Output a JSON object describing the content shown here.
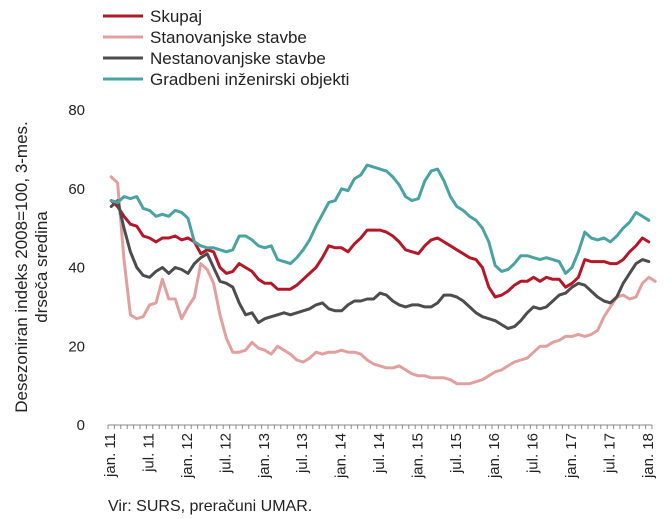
{
  "chart_data": {
    "type": "line",
    "title": "",
    "ylabel_line1": "Desezoniran indeks 2008=100, 3-mes.",
    "ylabel_line2": "drseča sredina",
    "xlabel": "",
    "ylim": [
      0,
      80
    ],
    "yticks": [
      0,
      20,
      40,
      60,
      80
    ],
    "grid": false,
    "legend_position": "top-left",
    "x_start": "2011-01",
    "x_end": "2018-03",
    "x_tick_labels": [
      "jan. 11",
      "jul. 11",
      "jan. 12",
      "jul. 12",
      "jan. 13",
      "jul. 13",
      "jan. 14",
      "jul. 14",
      "jan. 15",
      "jul. 15",
      "jan. 16",
      "jul. 16",
      "jan. 17",
      "jul. 17",
      "jan. 18"
    ],
    "series": [
      {
        "name": "Skupaj",
        "color": "#b3172a",
        "values": [
          57.0,
          55.5,
          53.0,
          51.0,
          50.5,
          48.0,
          47.5,
          46.5,
          47.5,
          47.5,
          48.0,
          47.0,
          47.5,
          46.5,
          43.5,
          44.5,
          44.0,
          40.0,
          38.5,
          39.0,
          41.0,
          40.0,
          39.0,
          37.0,
          36.0,
          36.0,
          34.5,
          34.5,
          34.5,
          35.5,
          37.0,
          38.5,
          40.0,
          42.5,
          45.5,
          45.0,
          45.0,
          44.0,
          46.0,
          47.5,
          49.5,
          49.5,
          49.5,
          49.0,
          48.0,
          46.5,
          44.5,
          44.0,
          43.5,
          45.5,
          47.0,
          47.5,
          46.5,
          45.5,
          44.5,
          43.5,
          42.5,
          42.0,
          40.0,
          35.0,
          32.5,
          33.0,
          34.0,
          35.5,
          36.5,
          36.5,
          37.5,
          36.5,
          37.5,
          37.0,
          37.0,
          35.0,
          36.0,
          37.5,
          42.0,
          41.5,
          41.5,
          41.5,
          41.0,
          41.0,
          42.0,
          44.0,
          45.5,
          47.5,
          46.5
        ]
      },
      {
        "name": "Stanovanjske stavbe",
        "color": "#e0a0a0",
        "values": [
          63.0,
          61.5,
          42.0,
          28.0,
          27.0,
          27.5,
          30.5,
          31.0,
          37.0,
          32.0,
          32.0,
          27.0,
          30.0,
          32.5,
          41.0,
          39.5,
          36.0,
          28.0,
          22.0,
          18.5,
          18.5,
          19.0,
          21.0,
          19.5,
          19.0,
          18.0,
          20.0,
          19.0,
          18.0,
          16.5,
          16.0,
          17.0,
          18.5,
          18.0,
          18.5,
          18.5,
          19.0,
          18.5,
          18.5,
          18.0,
          16.5,
          15.5,
          15.0,
          14.5,
          14.5,
          15.0,
          14.0,
          13.0,
          12.5,
          12.5,
          12.0,
          12.0,
          12.0,
          11.5,
          10.5,
          10.5,
          10.5,
          11.0,
          11.5,
          12.5,
          13.5,
          14.0,
          15.0,
          16.0,
          16.5,
          17.0,
          18.5,
          20.0,
          20.0,
          21.0,
          21.5,
          22.5,
          22.5,
          23.0,
          22.5,
          23.0,
          24.0,
          27.5,
          30.0,
          32.5,
          33.0,
          32.0,
          32.5,
          36.0,
          37.5,
          36.5
        ]
      },
      {
        "name": "Nestanovanjske stavbe",
        "color": "#4d4d4d",
        "values": [
          55.5,
          57.0,
          50.0,
          44.0,
          40.0,
          38.0,
          37.5,
          39.0,
          40.0,
          38.5,
          40.0,
          39.5,
          38.5,
          41.0,
          42.5,
          43.5,
          40.0,
          36.5,
          36.0,
          35.0,
          31.0,
          28.0,
          28.5,
          26.0,
          27.0,
          27.5,
          28.0,
          28.5,
          28.0,
          28.5,
          29.0,
          29.5,
          30.5,
          31.0,
          29.5,
          29.0,
          29.0,
          30.5,
          31.5,
          31.5,
          32.0,
          32.0,
          33.5,
          33.0,
          31.5,
          30.5,
          30.0,
          30.5,
          30.5,
          30.0,
          30.0,
          31.0,
          33.0,
          33.0,
          32.5,
          31.5,
          30.0,
          28.5,
          27.5,
          27.0,
          26.5,
          25.5,
          24.5,
          25.0,
          26.5,
          28.5,
          30.0,
          29.5,
          30.0,
          31.5,
          33.0,
          33.5,
          35.0,
          36.0,
          35.5,
          34.0,
          32.5,
          31.5,
          31.0,
          32.5,
          36.0,
          38.5,
          41.0,
          42.0,
          41.5
        ]
      },
      {
        "name": "Gradbeni inženirski objekti",
        "color": "#4aa3a1",
        "values": [
          57.0,
          56.5,
          58.0,
          57.5,
          58.0,
          55.0,
          54.5,
          53.0,
          53.5,
          53.0,
          54.5,
          54.0,
          52.5,
          46.5,
          45.5,
          45.0,
          45.0,
          44.5,
          44.0,
          44.5,
          48.0,
          48.0,
          47.0,
          45.5,
          45.0,
          45.5,
          42.0,
          41.5,
          41.0,
          42.5,
          44.5,
          47.0,
          50.5,
          53.5,
          56.5,
          57.0,
          60.0,
          59.5,
          62.5,
          63.5,
          66.0,
          65.5,
          65.0,
          64.5,
          63.0,
          61.0,
          58.0,
          57.0,
          57.5,
          62.0,
          64.5,
          65.0,
          62.0,
          58.0,
          55.5,
          54.5,
          53.0,
          52.0,
          50.0,
          46.5,
          40.5,
          39.0,
          39.5,
          41.0,
          43.0,
          43.0,
          42.5,
          42.0,
          42.5,
          42.0,
          41.5,
          38.5,
          40.0,
          44.0,
          49.0,
          47.5,
          47.0,
          47.5,
          46.5,
          48.0,
          50.0,
          51.5,
          54.0,
          53.0,
          52.0
        ]
      }
    ],
    "source": "Vir: SURS, preračuni UMAR."
  }
}
